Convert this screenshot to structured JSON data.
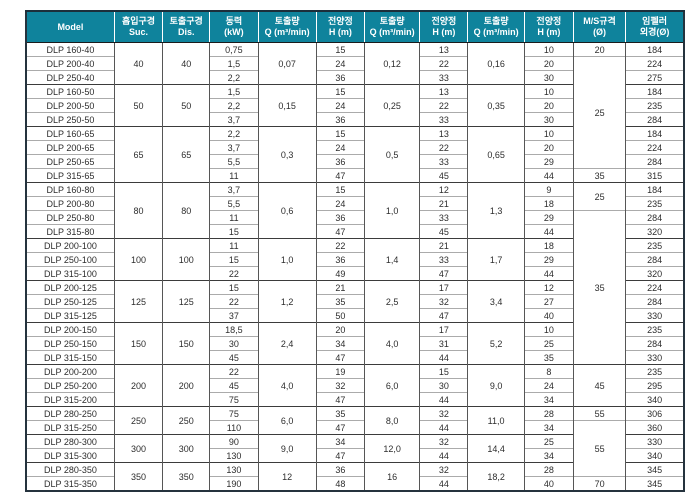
{
  "table": {
    "header": {
      "model": "Model",
      "suc": {
        "line1": "흡입구경",
        "line2": "Suc."
      },
      "dis": {
        "line1": "토출구경",
        "line2": "Dis."
      },
      "power": {
        "line1": "동력",
        "line2": "(kW)"
      },
      "flow1": {
        "line1": "토출량",
        "line2": "Q (m³/min)"
      },
      "head1": {
        "line1": "전양정",
        "line2": "H (m)"
      },
      "flow2": {
        "line1": "토출량",
        "line2": "Q (m³/min)"
      },
      "head2": {
        "line1": "전양정",
        "line2": "H (m)"
      },
      "flow3": {
        "line1": "토출량",
        "line2": "Q (m³/min)"
      },
      "head3": {
        "line1": "전양정",
        "line2": "H (m)"
      },
      "ms": {
        "line1": "M/S규격",
        "line2": "(Ø)"
      },
      "impeller": {
        "line1": "임펠러",
        "line2": "외경(Ø)"
      }
    },
    "groups": [
      {
        "suc": "40",
        "dis": "40",
        "q1": "0,07",
        "q2": "0,12",
        "q3": "0,16",
        "rows": [
          {
            "model": "DLP 160-40",
            "kw": "0,75",
            "h1": "15",
            "h2": "13",
            "h3": "10",
            "imp": "184"
          },
          {
            "model": "DLP 200-40",
            "kw": "1,5",
            "h1": "24",
            "h2": "22",
            "h3": "20",
            "imp": "224"
          },
          {
            "model": "DLP 250-40",
            "kw": "2,2",
            "h1": "36",
            "h2": "33",
            "h3": "30",
            "imp": "275"
          }
        ]
      },
      {
        "suc": "50",
        "dis": "50",
        "q1": "0,15",
        "q2": "0,25",
        "q3": "0,35",
        "rows": [
          {
            "model": "DLP 160-50",
            "kw": "1,5",
            "h1": "15",
            "h2": "13",
            "h3": "10",
            "imp": "184"
          },
          {
            "model": "DLP 200-50",
            "kw": "2,2",
            "h1": "24",
            "h2": "22",
            "h3": "20",
            "imp": "235"
          },
          {
            "model": "DLP 250-50",
            "kw": "3,7",
            "h1": "36",
            "h2": "33",
            "h3": "30",
            "imp": "284"
          }
        ]
      },
      {
        "suc": "65",
        "dis": "65",
        "q1": "0,3",
        "q2": "0,5",
        "q3": "0,65",
        "rows": [
          {
            "model": "DLP 160-65",
            "kw": "2,2",
            "h1": "15",
            "h2": "13",
            "h3": "10",
            "imp": "184"
          },
          {
            "model": "DLP 200-65",
            "kw": "3,7",
            "h1": "24",
            "h2": "22",
            "h3": "20",
            "imp": "224"
          },
          {
            "model": "DLP 250-65",
            "kw": "5,5",
            "h1": "36",
            "h2": "33",
            "h3": "29",
            "imp": "284"
          },
          {
            "model": "DLP 315-65",
            "kw": "11",
            "h1": "47",
            "h2": "45",
            "h3": "44",
            "imp": "315"
          }
        ]
      },
      {
        "suc": "80",
        "dis": "80",
        "q1": "0,6",
        "q2": "1,0",
        "q3": "1,3",
        "rows": [
          {
            "model": "DLP 160-80",
            "kw": "3,7",
            "h1": "15",
            "h2": "12",
            "h3": "9",
            "imp": "184"
          },
          {
            "model": "DLP 200-80",
            "kw": "5,5",
            "h1": "24",
            "h2": "21",
            "h3": "18",
            "imp": "235"
          },
          {
            "model": "DLP 250-80",
            "kw": "11",
            "h1": "36",
            "h2": "33",
            "h3": "29",
            "imp": "284"
          },
          {
            "model": "DLP 315-80",
            "kw": "15",
            "h1": "47",
            "h2": "45",
            "h3": "44",
            "imp": "320"
          }
        ]
      },
      {
        "suc": "100",
        "dis": "100",
        "q1": "1,0",
        "q2": "1,4",
        "q3": "1,7",
        "rows": [
          {
            "model": "DLP 200-100",
            "kw": "11",
            "h1": "22",
            "h2": "21",
            "h3": "18",
            "imp": "235"
          },
          {
            "model": "DLP 250-100",
            "kw": "15",
            "h1": "36",
            "h2": "33",
            "h3": "29",
            "imp": "284"
          },
          {
            "model": "DLP 315-100",
            "kw": "22",
            "h1": "49",
            "h2": "47",
            "h3": "44",
            "imp": "320"
          }
        ]
      },
      {
        "suc": "125",
        "dis": "125",
        "q1": "1,2",
        "q2": "2,5",
        "q3": "3,4",
        "rows": [
          {
            "model": "DLP 200-125",
            "kw": "15",
            "h1": "21",
            "h2": "17",
            "h3": "12",
            "imp": "224"
          },
          {
            "model": "DLP 250-125",
            "kw": "22",
            "h1": "35",
            "h2": "32",
            "h3": "27",
            "imp": "284"
          },
          {
            "model": "DLP 315-125",
            "kw": "37",
            "h1": "50",
            "h2": "47",
            "h3": "40",
            "imp": "330"
          }
        ]
      },
      {
        "suc": "150",
        "dis": "150",
        "q1": "2,4",
        "q2": "4,0",
        "q3": "5,2",
        "rows": [
          {
            "model": "DLP 200-150",
            "kw": "18,5",
            "h1": "20",
            "h2": "17",
            "h3": "10",
            "imp": "235"
          },
          {
            "model": "DLP 250-150",
            "kw": "30",
            "h1": "34",
            "h2": "31",
            "h3": "25",
            "imp": "284"
          },
          {
            "model": "DLP 315-150",
            "kw": "45",
            "h1": "47",
            "h2": "44",
            "h3": "35",
            "imp": "330"
          }
        ]
      },
      {
        "suc": "200",
        "dis": "200",
        "q1": "4,0",
        "q2": "6,0",
        "q3": "9,0",
        "rows": [
          {
            "model": "DLP 200-200",
            "kw": "22",
            "h1": "19",
            "h2": "15",
            "h3": "8",
            "imp": "235"
          },
          {
            "model": "DLP 250-200",
            "kw": "45",
            "h1": "32",
            "h2": "30",
            "h3": "24",
            "imp": "295"
          },
          {
            "model": "DLP 315-200",
            "kw": "75",
            "h1": "47",
            "h2": "44",
            "h3": "34",
            "imp": "340"
          }
        ]
      },
      {
        "suc": "250",
        "dis": "250",
        "q1": "6,0",
        "q2": "8,0",
        "q3": "11,0",
        "rows": [
          {
            "model": "DLP 280-250",
            "kw": "75",
            "h1": "35",
            "h2": "32",
            "h3": "28",
            "imp": "306"
          },
          {
            "model": "DLP 315-250",
            "kw": "110",
            "h1": "47",
            "h2": "44",
            "h3": "34",
            "imp": "360"
          }
        ]
      },
      {
        "suc": "300",
        "dis": "300",
        "q1": "9,0",
        "q2": "12,0",
        "q3": "14,4",
        "rows": [
          {
            "model": "DLP 280-300",
            "kw": "90",
            "h1": "34",
            "h2": "32",
            "h3": "25",
            "imp": "330"
          },
          {
            "model": "DLP 315-300",
            "kw": "130",
            "h1": "47",
            "h2": "44",
            "h3": "34",
            "imp": "340"
          }
        ]
      },
      {
        "suc": "350",
        "dis": "350",
        "q1": "12",
        "q2": "16",
        "q3": "18,2",
        "rows": [
          {
            "model": "DLP 280-350",
            "kw": "130",
            "h1": "36",
            "h2": "32",
            "h3": "28",
            "imp": "345"
          },
          {
            "model": "DLP 315-350",
            "kw": "190",
            "h1": "48",
            "h2": "44",
            "h3": "40",
            "imp": "345"
          }
        ]
      }
    ],
    "ms_spans": [
      {
        "rows": 1,
        "value": "20"
      },
      {
        "rows": 8,
        "value": "25"
      },
      {
        "rows": 1,
        "value": "35"
      },
      {
        "rows": 2,
        "value": "25"
      },
      {
        "rows": 11,
        "value": "35"
      },
      {
        "rows": 3,
        "value": "45"
      },
      {
        "rows": 1,
        "value": "55"
      },
      {
        "rows": 4,
        "value": "55"
      },
      {
        "rows": 1,
        "value": "70"
      }
    ],
    "colors": {
      "header_bg": "#0f839c",
      "header_text": "#ffffff",
      "outer_border": "#25333e",
      "group_line": "#3b3b3b",
      "row_line": "#ababab"
    }
  }
}
